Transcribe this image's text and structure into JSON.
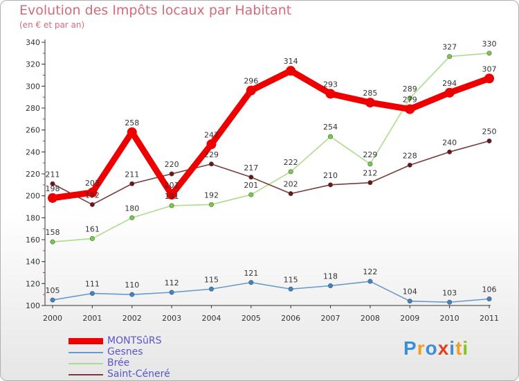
{
  "header": {
    "title": "Evolution des Impôts locaux par Habitant",
    "subtitle": "(en € et par an)"
  },
  "logo": {
    "text": "Proxiti",
    "colors": [
      "#3a8fd6",
      "#f0a020",
      "#3a8fd6",
      "#e04020",
      "#3a8fd6",
      "#f0a020",
      "#8ac020"
    ]
  },
  "chart_data": {
    "type": "line",
    "title": "Evolution des Impôts locaux par Habitant",
    "subtitle": "(en € et par an)",
    "xlabel": "",
    "ylabel": "",
    "x": [
      "2000",
      "2001",
      "2002",
      "2003",
      "2004",
      "2005",
      "2006",
      "2007",
      "2008",
      "2009",
      "2010",
      "2011"
    ],
    "ylim": [
      100,
      340
    ],
    "yticks": [
      100,
      120,
      140,
      160,
      180,
      200,
      220,
      240,
      260,
      280,
      300,
      320,
      340
    ],
    "grid": false,
    "legend_position": "bottom-left",
    "series": [
      {
        "name": "MONTSûRS",
        "color": "#ee0000",
        "marker_color": "#ee0000",
        "weight": "heavy",
        "values": [
          198,
          203,
          258,
          201,
          247,
          296,
          314,
          293,
          285,
          279,
          294,
          307
        ]
      },
      {
        "name": "Gesnes",
        "color": "#6699cc",
        "marker_color": "#3d85c6",
        "weight": "light",
        "values": [
          105,
          111,
          110,
          112,
          115,
          121,
          115,
          118,
          122,
          104,
          103,
          106
        ]
      },
      {
        "name": "Brée",
        "color": "#aadd88",
        "marker_color": "#77cc44",
        "weight": "light",
        "values": [
          158,
          161,
          180,
          191,
          192,
          201,
          222,
          254,
          229,
          289,
          327,
          330
        ]
      },
      {
        "name": "Saint-Céneré",
        "color": "#7a3a3a",
        "marker_color": "#6b1515",
        "weight": "light",
        "values": [
          211,
          192,
          211,
          220,
          229,
          217,
          202,
          210,
          212,
          228,
          240,
          250
        ]
      }
    ]
  }
}
